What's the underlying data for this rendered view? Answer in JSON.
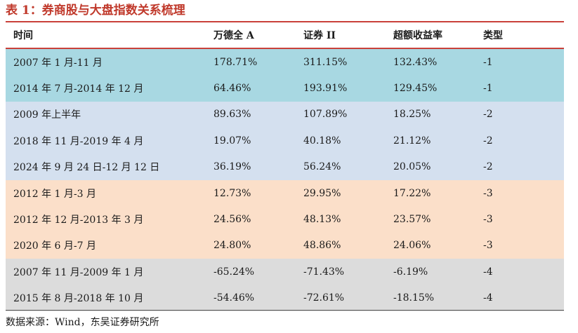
{
  "caption": "表 1：券商股与大盘指数关系梳理",
  "table": {
    "headers": [
      "时间",
      "万德全 A",
      "证券 II",
      "超额收益率",
      "类型"
    ],
    "rows": [
      {
        "group": 1,
        "cells": [
          "2007 年 1 月-11 月",
          "178.71%",
          "311.15%",
          "132.43%",
          "-1"
        ]
      },
      {
        "group": 1,
        "cells": [
          "2014 年 7 月-2014 年 12 月",
          "64.46%",
          "193.91%",
          "129.45%",
          "-1"
        ]
      },
      {
        "group": 2,
        "cells": [
          "2009 年上半年",
          "89.63%",
          "107.89%",
          "18.25%",
          "-2"
        ]
      },
      {
        "group": 2,
        "cells": [
          "2018 年 11 月-2019 年 4 月",
          "19.07%",
          "40.18%",
          "21.12%",
          "-2"
        ]
      },
      {
        "group": 2,
        "cells": [
          "2024 年 9 月 24 日-12 月 12 日",
          "36.19%",
          "56.24%",
          "20.05%",
          "-2"
        ]
      },
      {
        "group": 3,
        "cells": [
          "2012 年 1 月-3 月",
          "12.73%",
          "29.95%",
          "17.22%",
          "-3"
        ]
      },
      {
        "group": 3,
        "cells": [
          "2012 年 12 月-2013 年 3 月",
          "24.56%",
          "48.13%",
          "23.57%",
          "-3"
        ]
      },
      {
        "group": 3,
        "cells": [
          "2020 年 6 月-7 月",
          "24.80%",
          "48.86%",
          "24.06%",
          "-3"
        ]
      },
      {
        "group": 4,
        "cells": [
          "2007 年 11 月-2009 年 1 月",
          "-65.24%",
          "-71.43%",
          "-6.19%",
          "-4"
        ]
      },
      {
        "group": 4,
        "cells": [
          "2015 年 8 月-2018 年 10 月",
          "-54.46%",
          "-72.61%",
          "-18.15%",
          "-4"
        ]
      }
    ]
  },
  "source": "数据来源：Wind，东吴证券研究所"
}
